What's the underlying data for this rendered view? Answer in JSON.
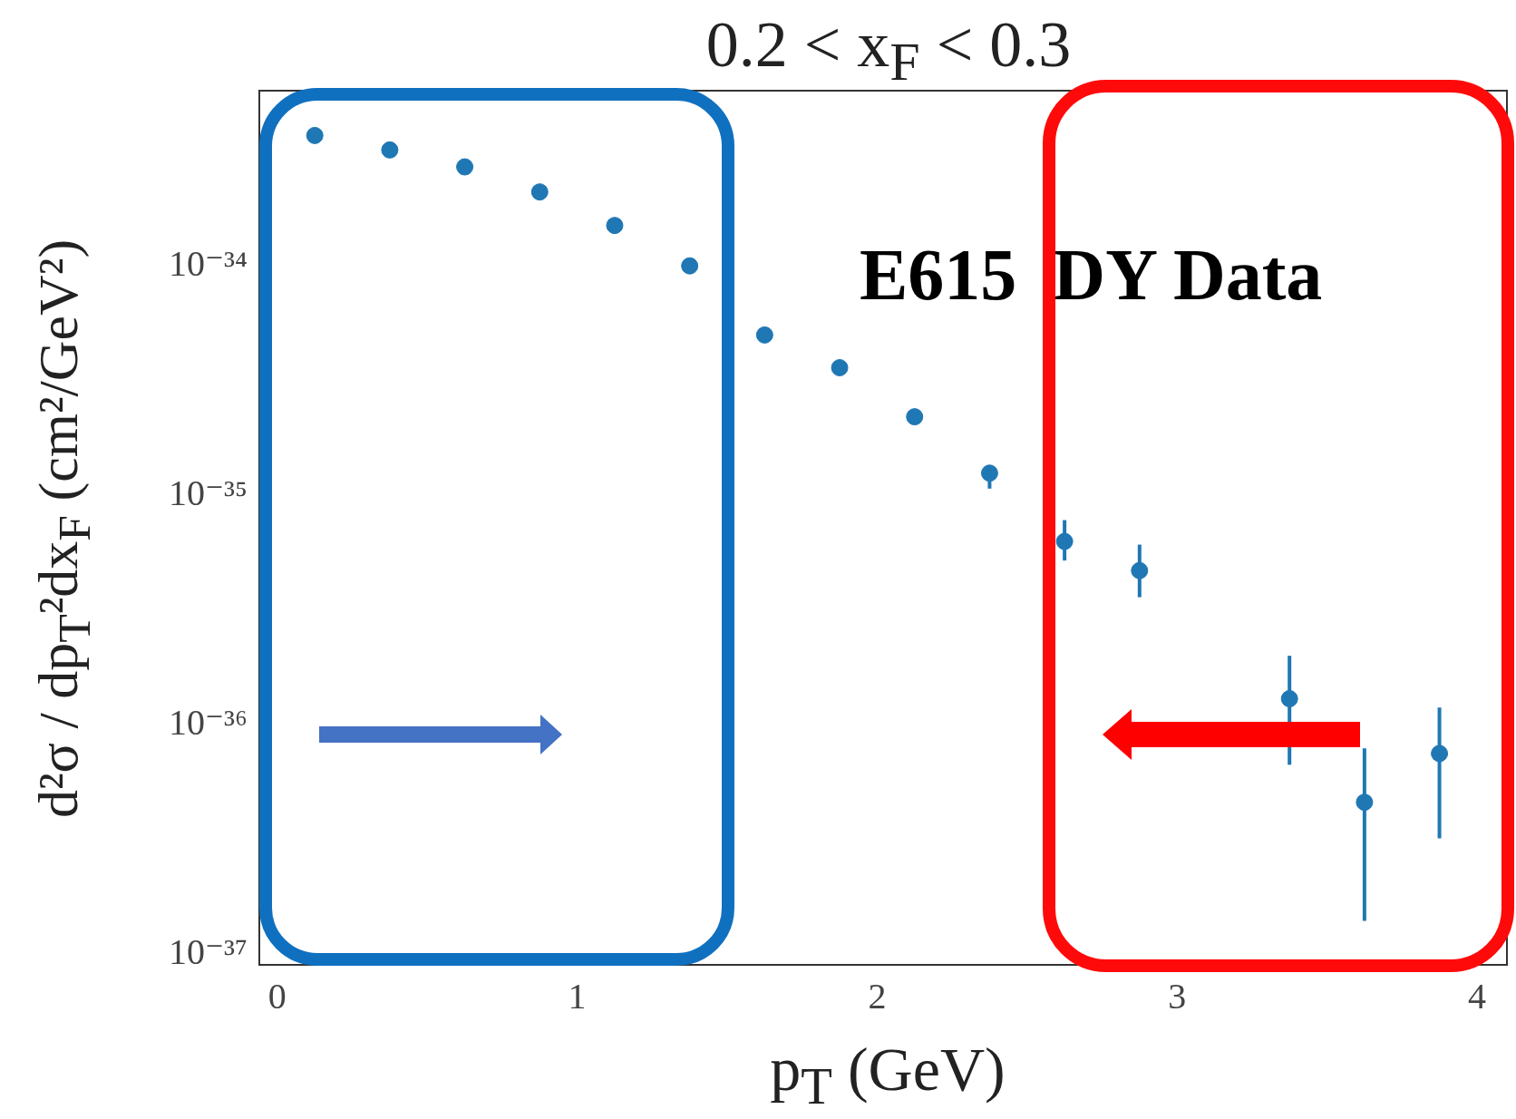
{
  "chart_data": {
    "type": "scatter",
    "title": "0.2 < x$_{F}$ < 0.3",
    "xlabel": "p$_{T}$ (GeV)",
    "ylabel": "d²σ / dp$_{T}$²dx$_{F}$ (cm²/GeV²)",
    "annotations": [
      "E615  DY Data"
    ],
    "x": [
      0.125,
      0.375,
      0.625,
      0.875,
      1.125,
      1.375,
      1.625,
      1.875,
      2.125,
      2.375,
      2.625,
      2.875,
      3.125,
      3.375,
      3.625,
      3.875
    ],
    "series": [
      {
        "color": "#1f77b4",
        "values": [
          3.7e-34,
          3.2e-34,
          2.7e-34,
          2.1e-34,
          1.5e-34,
          1e-34,
          5e-35,
          3.6e-35,
          2.2e-35,
          1.25e-35,
          6.3e-36,
          4.7e-36,
          null,
          1.3e-36,
          4.6e-37,
          7.5e-37
        ],
        "errors": [
          null,
          null,
          null,
          null,
          null,
          null,
          null,
          null,
          null,
          [
            1.07e-35,
            1.35e-35
          ],
          [
            5.2e-36,
            7.8e-36
          ],
          [
            3.6e-36,
            6.1e-36
          ],
          null,
          [
            6.7e-37,
            2e-36
          ],
          [
            1.4e-37,
            7.9e-37
          ],
          [
            3.2e-37,
            1.19e-36
          ]
        ]
      }
    ],
    "marker": "circle",
    "log": "y",
    "xlim": [
      -0.06,
      4.1
    ],
    "xticks": [
      0,
      1,
      2,
      3,
      4
    ],
    "ylim": [
      9e-38,
      5.8e-34
    ],
    "yticks": [
      {
        "value": 1e-37,
        "label": "10⁻³⁷"
      },
      {
        "value": 1e-36,
        "label": "10⁻³⁶"
      },
      {
        "value": 1e-35,
        "label": "10⁻³⁵"
      },
      {
        "value": 1e-34,
        "label": "10⁻³⁴"
      }
    ]
  }
}
